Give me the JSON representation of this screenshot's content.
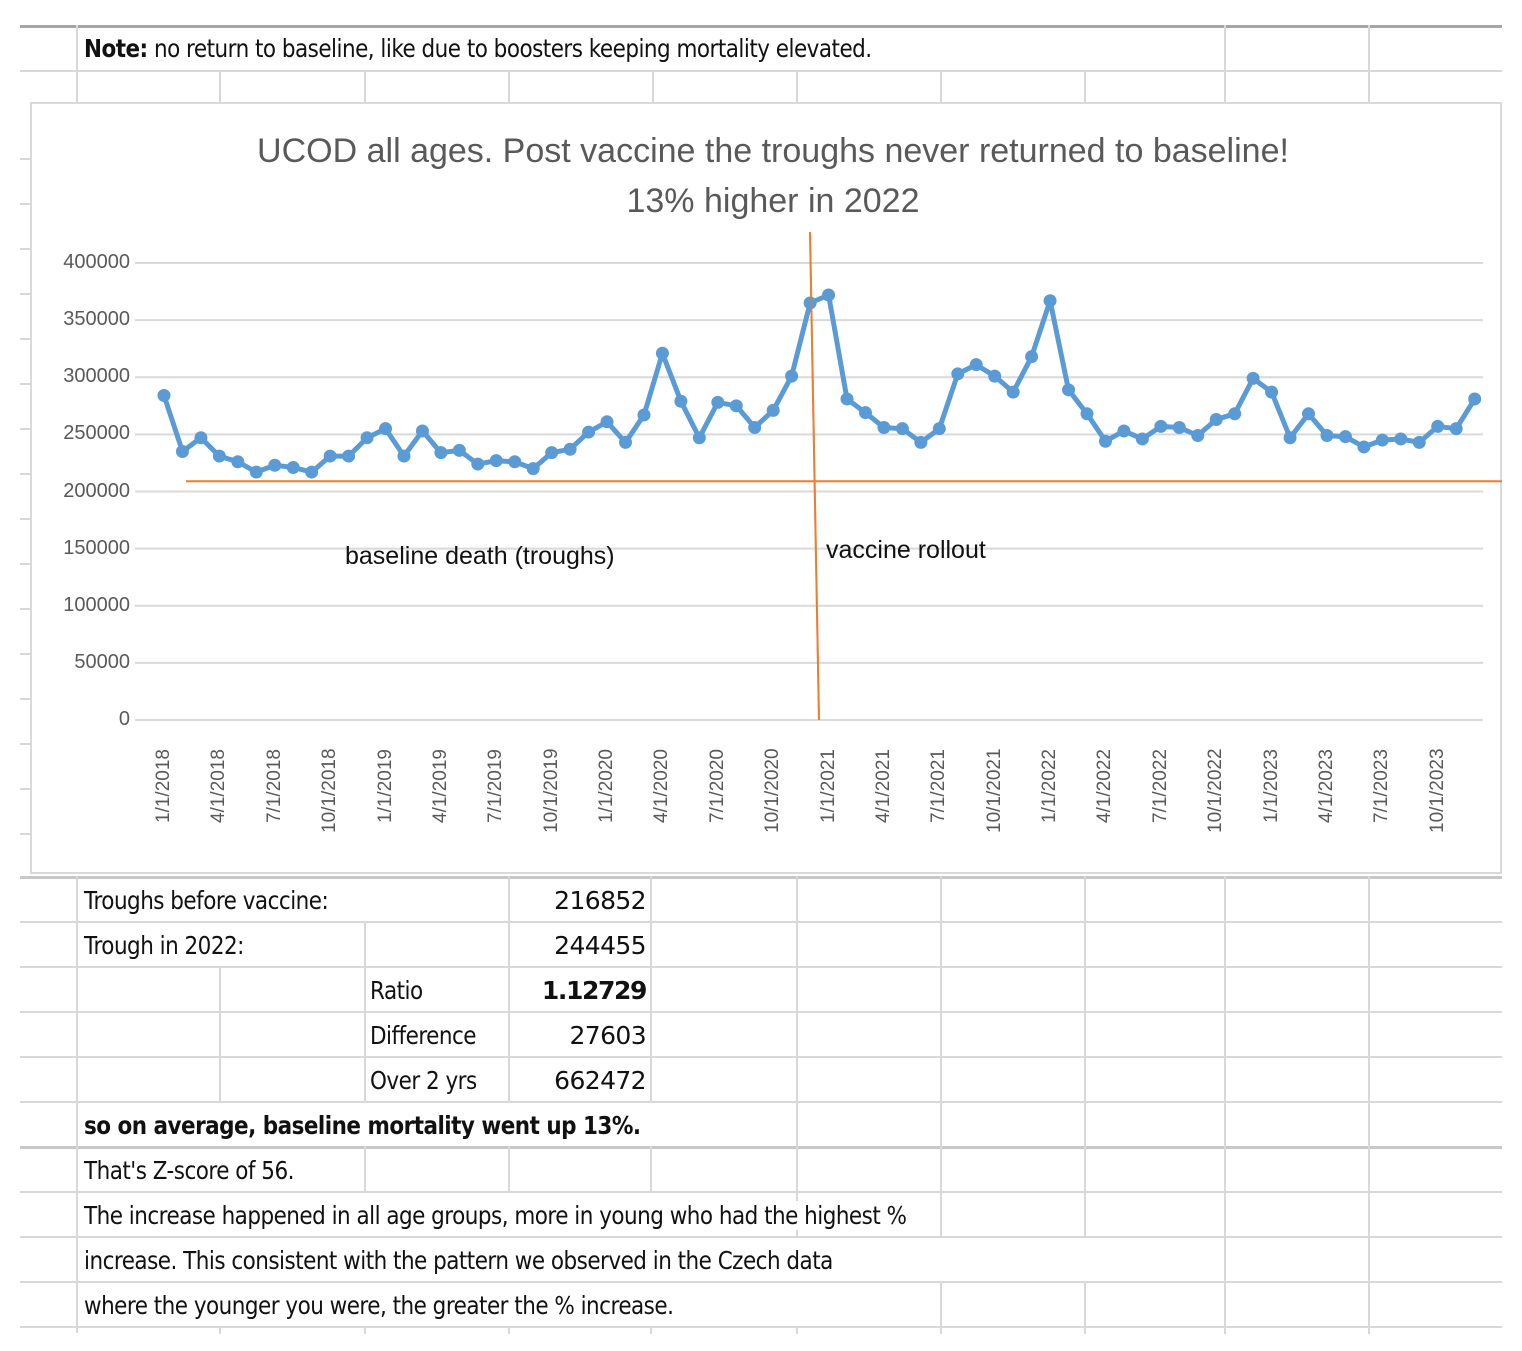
{
  "note": {
    "label": "Note:",
    "text": " no return to baseline, like due to boosters keeping mortality elevated."
  },
  "chart_data": {
    "type": "line",
    "title": "UCOD all ages. Post vaccine the troughs never returned to baseline!",
    "subtitle": "13% higher in 2022",
    "xlabel": "",
    "ylabel": "",
    "ylim": [
      0,
      400000
    ],
    "yticks": [
      "400000",
      "350000",
      "300000",
      "250000",
      "200000",
      "150000",
      "100000",
      "50000",
      "0"
    ],
    "ytick_values": [
      400000,
      350000,
      300000,
      250000,
      200000,
      150000,
      100000,
      50000,
      0
    ],
    "grid": true,
    "x_tick_labels": [
      "1/1/2018",
      "4/1/2018",
      "7/1/2018",
      "10/1/2018",
      "1/1/2019",
      "4/1/2019",
      "7/1/2019",
      "10/1/2019",
      "1/1/2020",
      "4/1/2020",
      "7/1/2020",
      "10/1/2020",
      "1/1/2021",
      "4/1/2021",
      "7/1/2021",
      "10/1/2021",
      "1/1/2022",
      "4/1/2022",
      "7/1/2022",
      "10/1/2022",
      "1/1/2023",
      "4/1/2023",
      "7/1/2023",
      "10/1/2023"
    ],
    "series": [
      {
        "name": "UCOD all ages",
        "color": "#5b9bd5",
        "start": "1/1/2018",
        "interval": "month",
        "values": [
          284000,
          235000,
          247000,
          231000,
          226000,
          217000,
          223000,
          221000,
          217000,
          231000,
          231000,
          247000,
          255000,
          231000,
          253000,
          234000,
          236000,
          224000,
          227000,
          226000,
          220000,
          234000,
          237000,
          252000,
          261000,
          243000,
          267000,
          321000,
          279000,
          247000,
          278000,
          275000,
          256000,
          271000,
          301000,
          365000,
          372000,
          281000,
          269000,
          256000,
          255000,
          243000,
          255000,
          303000,
          311000,
          301000,
          287000,
          318000,
          367000,
          289000,
          268000,
          244000,
          253000,
          246000,
          257000,
          256000,
          249000,
          263000,
          268000,
          299000,
          287000,
          247000,
          268000,
          249000,
          248000,
          239000,
          245000,
          246000,
          243000,
          257000,
          255000,
          281000
        ]
      }
    ],
    "reference_lines": [
      {
        "type": "horizontal",
        "value": 209000,
        "label": "baseline death (troughs)",
        "color": "#ed7d31"
      },
      {
        "type": "vertical",
        "at": "12/2020",
        "label": "vaccine rollout",
        "color": "#ed7d31"
      }
    ]
  },
  "table": {
    "rows": [
      {
        "label": "Troughs before vaccine:",
        "value": "216852"
      },
      {
        "label": "Trough in 2022:",
        "value": "244455"
      },
      {
        "label": "Ratio",
        "value": "1.12729"
      },
      {
        "label": "Difference",
        "value": "27603"
      },
      {
        "label": "Over 2 yrs",
        "value": "662472"
      }
    ]
  },
  "summary": {
    "line1": "so on average, baseline mortality went up 13%.",
    "line2": "That's Z-score of 56.",
    "line3": "The increase happened in all age groups, more in young who had the highest %",
    "line4": "increase. This consistent with the pattern we observed in the Czech data",
    "line5": "where the younger you were, the greater the % increase."
  }
}
